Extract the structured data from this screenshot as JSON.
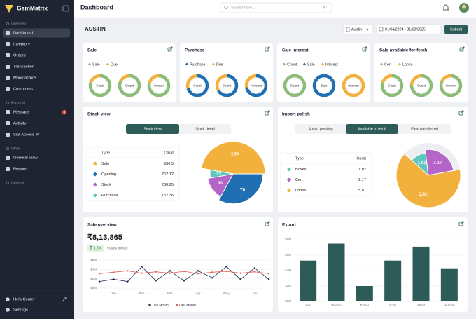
{
  "sidebar": {
    "brand": "GemMatrix",
    "sections": [
      {
        "title": "Overview",
        "items": [
          {
            "label": "Dashboard",
            "active": true
          },
          {
            "label": "Inventory"
          },
          {
            "label": "Orders"
          },
          {
            "label": "Transaction"
          },
          {
            "label": "Manufacture"
          },
          {
            "label": "Customers"
          }
        ]
      },
      {
        "title": "Personal",
        "items": [
          {
            "label": "Message",
            "badge": "3"
          },
          {
            "label": "Activity"
          },
          {
            "label": "Site Access IP"
          }
        ]
      },
      {
        "title": "Other",
        "items": [
          {
            "label": "General View"
          },
          {
            "label": "Reports"
          }
        ]
      },
      {
        "title": "General",
        "items": []
      }
    ],
    "footer_items": [
      "Help Center",
      "Settings"
    ]
  },
  "topbar": {
    "title": "Dashboard",
    "search_placeholder": "Search here...",
    "shortcut": "⌘/"
  },
  "header": {
    "title": "AUSTIN",
    "location": "Austin",
    "date_range": "01/04/2024 - 31/03/2025",
    "submit": "Submit"
  },
  "summary_cards": [
    {
      "title": "Sale",
      "legend": [
        {
          "name": "Sale",
          "color": "#8dbb78"
        },
        {
          "name": "Due",
          "color": "#f2b13c"
        }
      ],
      "donuts": [
        {
          "label": "Carat",
          "values": [
            80,
            20
          ]
        },
        {
          "label": "Count",
          "values": [
            82,
            18
          ]
        },
        {
          "label": "Amount",
          "values": [
            78,
            22
          ]
        }
      ]
    },
    {
      "title": "Purchase",
      "legend": [
        {
          "name": "Purchase",
          "color": "#1f6fb2"
        },
        {
          "name": "Due",
          "color": "#f2b13c"
        }
      ],
      "donuts": [
        {
          "label": "Carat",
          "values": [
            70,
            30
          ]
        },
        {
          "label": "Count",
          "values": [
            66,
            34
          ]
        },
        {
          "label": "Amount",
          "values": [
            72,
            28
          ]
        }
      ]
    },
    {
      "title": "Sale interest",
      "legend": [
        {
          "name": "Count",
          "color": "#8dbb78"
        },
        {
          "name": "Sale",
          "color": "#1f6fb2"
        },
        {
          "name": "Interest",
          "color": "#f2b13c"
        }
      ],
      "donuts": [
        {
          "label": "Count",
          "values": [
            100
          ],
          "color": "#8dbb78"
        },
        {
          "label": "Sale",
          "values": [
            100
          ],
          "color": "#1f6fb2"
        },
        {
          "label": "Interest",
          "values": [
            100
          ],
          "color": "#f2b13c"
        }
      ]
    },
    {
      "title": "Sale available for fetch",
      "legend": [
        {
          "name": "Cert",
          "color": "#8dbb78"
        },
        {
          "name": "Loose",
          "color": "#f2b13c"
        }
      ],
      "donuts": [
        {
          "label": "Carat",
          "values": [
            80,
            20
          ]
        },
        {
          "label": "Count",
          "values": [
            76,
            24
          ]
        },
        {
          "label": "Amount",
          "values": [
            82,
            18
          ]
        }
      ]
    }
  ],
  "stock_view": {
    "title": "Stock view",
    "tabs": [
      {
        "label": "Stock view",
        "active": true
      },
      {
        "label": "Stock detail"
      }
    ],
    "columns": [
      "Type",
      "Carat"
    ],
    "rows": [
      {
        "type": "Sale",
        "carat": 936.5,
        "color": "#f2b13c"
      },
      {
        "type": "Opening",
        "carat": 762.12,
        "color": "#1f6fb2"
      },
      {
        "type": "Stock",
        "carat": 230.25,
        "color": "#b565c8"
      },
      {
        "type": "Purchase",
        "carat": 152.36,
        "color": "#5cc7be"
      }
    ],
    "pie": {
      "type": "pie",
      "values": [
        100,
        70,
        30,
        12
      ],
      "colors": [
        "#f2b13c",
        "#1f6fb2",
        "#b565c8",
        "#5cc7be"
      ]
    }
  },
  "import_polish": {
    "title": "Import polish",
    "tabs": [
      {
        "label": "Austin pending"
      },
      {
        "label": "Available to fetch",
        "active": true
      },
      {
        "label": "Final transferred"
      }
    ],
    "columns": [
      "Type",
      "Carat"
    ],
    "rows": [
      {
        "type": "Boxes",
        "carat": 1.02,
        "color": "#5cc7be"
      },
      {
        "type": "Cert",
        "carat": 2.17,
        "color": "#b565c8"
      },
      {
        "type": "Loose",
        "carat": 5.81,
        "color": "#f2b13c"
      }
    ]
  },
  "sale_overview": {
    "title": "Sale overview",
    "amount": "₹8,13,865",
    "change": "1.6%",
    "change_note": "vs last month",
    "chart": {
      "type": "line",
      "categories": [
        null,
        "Jan",
        null,
        "Feb",
        null,
        "Mar",
        null,
        "Apr",
        null,
        "May",
        null,
        "Jun",
        null
      ],
      "series": [
        {
          "name": "This Month",
          "color": "#1e2a4a",
          "values": [
            1.4,
            1.9,
            1.4,
            4.6,
            1.6,
            3.7,
            1.6,
            3.7,
            2.2,
            4.6,
            1.9,
            4.3,
            1.9
          ]
        },
        {
          "name": "Last Month",
          "color": "#e0605a",
          "values": [
            3.1,
            3.4,
            3.7,
            3.2,
            3.5,
            3.2,
            3.6,
            3.1,
            3.4,
            3.6,
            3.2,
            3.5,
            3.1
          ]
        }
      ],
      "ylim": [
        0,
        6
      ],
      "yticks": [
        {
          "value": 0,
          "label": "$0M"
        },
        {
          "value": 2,
          "label": "$2M"
        },
        {
          "value": 4,
          "label": "$4M"
        },
        {
          "value": 6,
          "label": "$6M"
        }
      ],
      "grid": true,
      "legend": "bottom"
    }
  },
  "export": {
    "title": "Export",
    "chart": {
      "type": "bar",
      "categories": [
        "Jane",
        "Warren",
        "Esther",
        "Cody",
        "Albert",
        "Nicholas"
      ],
      "values": [
        5.3,
        7.5,
        2.0,
        5.3,
        7.1,
        4.3
      ],
      "color": "#2d5b57",
      "ylim": [
        0,
        8
      ],
      "yticks": [
        {
          "value": 0,
          "label": "$0M"
        },
        {
          "value": 2,
          "label": "$2M"
        },
        {
          "value": 4,
          "label": "$4M"
        },
        {
          "value": 6,
          "label": "$6M"
        },
        {
          "value": 8,
          "label": "$8M"
        }
      ],
      "grid": true
    }
  }
}
